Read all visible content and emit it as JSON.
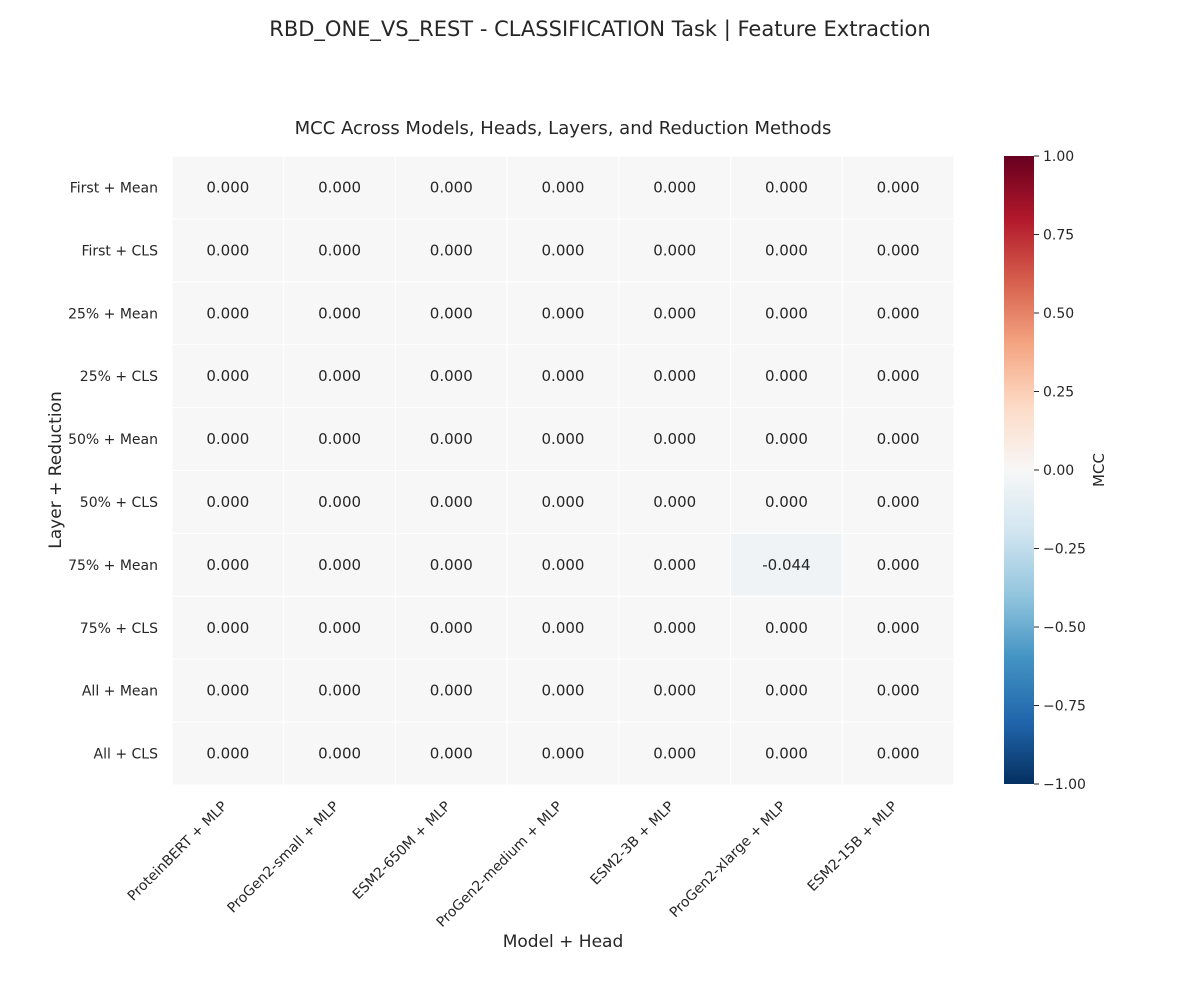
{
  "chart_data": {
    "type": "heatmap",
    "suptitle": "RBD_ONE_VS_REST - CLASSIFICATION Task | Feature Extraction",
    "title": "MCC Across Models, Heads, Layers, and Reduction Methods",
    "xlabel": "Model + Head",
    "ylabel": "Layer + Reduction",
    "x_categories": [
      "ProteinBERT + MLP",
      "ProGen2-small + MLP",
      "ESM2-650M + MLP",
      "ProGen2-medium + MLP",
      "ESM2-3B + MLP",
      "ProGen2-xlarge + MLP",
      "ESM2-15B + MLP"
    ],
    "y_categories": [
      "First + Mean",
      "First + CLS",
      "25% + Mean",
      "25% + CLS",
      "50% + Mean",
      "50% + CLS",
      "75% + Mean",
      "75% + CLS",
      "All + Mean",
      "All + CLS"
    ],
    "values": [
      [
        0.0,
        0.0,
        0.0,
        0.0,
        0.0,
        0.0,
        0.0
      ],
      [
        0.0,
        0.0,
        0.0,
        0.0,
        0.0,
        0.0,
        0.0
      ],
      [
        0.0,
        0.0,
        0.0,
        0.0,
        0.0,
        0.0,
        0.0
      ],
      [
        0.0,
        0.0,
        0.0,
        0.0,
        0.0,
        0.0,
        0.0
      ],
      [
        0.0,
        0.0,
        0.0,
        0.0,
        0.0,
        0.0,
        0.0
      ],
      [
        0.0,
        0.0,
        0.0,
        0.0,
        0.0,
        0.0,
        0.0
      ],
      [
        0.0,
        0.0,
        0.0,
        0.0,
        0.0,
        -0.044,
        0.0
      ],
      [
        0.0,
        0.0,
        0.0,
        0.0,
        0.0,
        0.0,
        0.0
      ],
      [
        0.0,
        0.0,
        0.0,
        0.0,
        0.0,
        0.0,
        0.0
      ],
      [
        0.0,
        0.0,
        0.0,
        0.0,
        0.0,
        0.0,
        0.0
      ]
    ],
    "colorbar": {
      "label": "MCC",
      "range": [
        -1.0,
        1.0
      ],
      "ticks": [
        -1.0,
        -0.75,
        -0.5,
        -0.25,
        0.0,
        0.25,
        0.5,
        0.75,
        1.0
      ],
      "tick_labels": [
        "−1.00",
        "−0.75",
        "−0.50",
        "−0.25",
        "0.00",
        "0.25",
        "0.50",
        "0.75",
        "1.00"
      ],
      "colormap": "RdBu_r",
      "colormap_stops": [
        "#053061",
        "#2166ac",
        "#4393c3",
        "#92c5de",
        "#d1e5f0",
        "#f7f7f7",
        "#fddbc7",
        "#f4a582",
        "#d6604d",
        "#b2182b",
        "#67001f"
      ]
    },
    "grid": false,
    "legend": "colorbar-right"
  }
}
